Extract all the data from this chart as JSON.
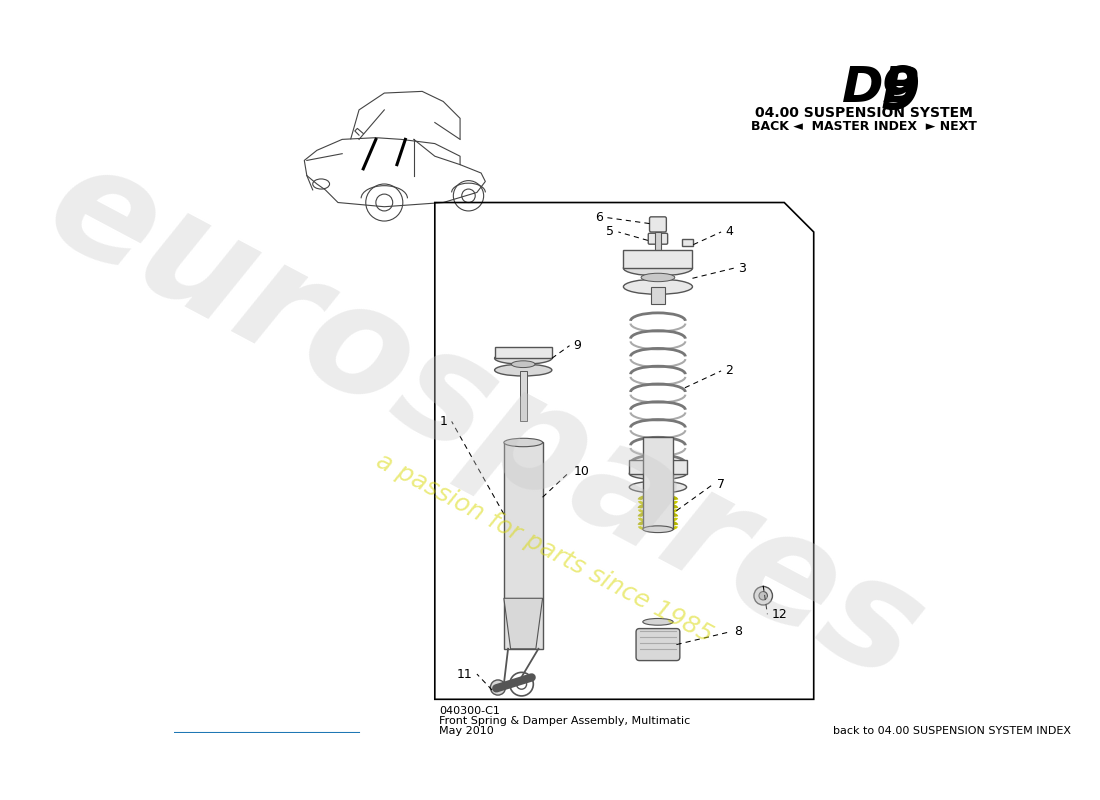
{
  "title_db": "DB",
  "title_9": "9",
  "subtitle": "04.00 SUSPENSION SYSTEM",
  "nav_text": "BACK ◄  MASTER INDEX  ► NEXT",
  "part_code": "040300-C1",
  "part_name": "Front Spring & Damper Assembly, Multimatic",
  "date": "May 2010",
  "back_link": "back to 04.00 SUSPENSION SYSTEM INDEX",
  "bg_color": "#ffffff",
  "line_color": "#555555",
  "part_fill": "#e8e8e8",
  "spring_stroke": "#888888",
  "yellow_color": "#d4d400",
  "watermark_gray": "#cccccc",
  "watermark_yellow": "#d8d800",
  "text_color": "#000000"
}
